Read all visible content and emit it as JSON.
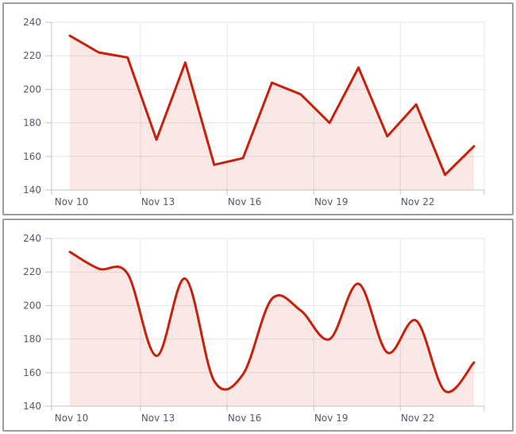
{
  "theme": {
    "line_color": "#c7200b",
    "fill_color": "rgba(199,32,11,0.10)",
    "grid_color": "#e6e6e6",
    "axis_color": "#c2c2c2",
    "tick_label_color": "#4e5b6b",
    "panel_border_color": "#9d9d9d",
    "panel_bg": "#ffffff"
  },
  "chart_data": [
    {
      "type": "line",
      "title": "",
      "xlabel": "",
      "ylabel": "",
      "x": [
        "Nov 10",
        "Nov 11",
        "Nov 12",
        "Nov 13",
        "Nov 14",
        "Nov 15",
        "Nov 16",
        "Nov 17",
        "Nov 18",
        "Nov 19",
        "Nov 20",
        "Nov 21",
        "Nov 22",
        "Nov 23",
        "Nov 24"
      ],
      "values": [
        232,
        222,
        219,
        170,
        216,
        155,
        159,
        204,
        197,
        180,
        213,
        172,
        191,
        149,
        166
      ],
      "xticks": [
        "Nov 10",
        "Nov 13",
        "Nov 16",
        "Nov 19",
        "Nov 22"
      ],
      "yticks": [
        140,
        160,
        180,
        200,
        220,
        240
      ],
      "ylim": [
        140,
        240
      ],
      "grid": true,
      "legend": false,
      "area_fill": true
    },
    {
      "type": "area",
      "interpolation": "spline",
      "title": "",
      "xlabel": "",
      "ylabel": "",
      "x": [
        "Nov 10",
        "Nov 11",
        "Nov 12",
        "Nov 13",
        "Nov 14",
        "Nov 15",
        "Nov 16",
        "Nov 17",
        "Nov 18",
        "Nov 19",
        "Nov 20",
        "Nov 21",
        "Nov 22",
        "Nov 23",
        "Nov 24"
      ],
      "values": [
        232,
        222,
        219,
        170,
        216,
        155,
        159,
        204,
        197,
        180,
        213,
        172,
        191,
        149,
        166
      ],
      "xticks": [
        "Nov 10",
        "Nov 13",
        "Nov 16",
        "Nov 19",
        "Nov 22"
      ],
      "yticks": [
        140,
        160,
        180,
        200,
        220,
        240
      ],
      "ylim": [
        140,
        240
      ],
      "grid": true,
      "legend": false,
      "area_fill": true
    }
  ]
}
